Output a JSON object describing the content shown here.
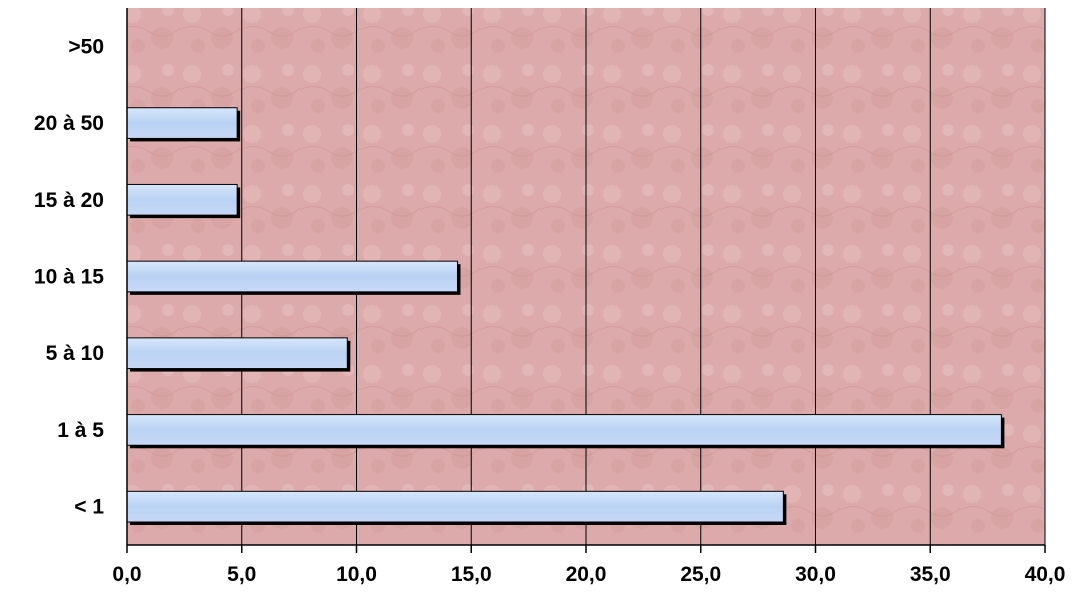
{
  "chart_data": {
    "type": "bar",
    "orientation": "horizontal",
    "categories": [
      "< 1",
      "1 à 5",
      "5 à 10",
      "10 à 15",
      "15 à 20",
      "20 à 50",
      ">50"
    ],
    "values": [
      28.6,
      38.1,
      9.6,
      14.4,
      4.8,
      4.8,
      0.0
    ],
    "xlim": [
      0,
      40
    ],
    "x_ticks": [
      "0,0",
      "5,0",
      "10,0",
      "15,0",
      "20,0",
      "25,0",
      "30,0",
      "35,0",
      "40,0"
    ],
    "grid": "vertical",
    "legend": "none",
    "title": "",
    "xlabel": "",
    "ylabel": "",
    "colors": {
      "plot_background": "#dcaaaa",
      "bar_fill": "#bcd4f4",
      "bar_shadow": "#000000",
      "gridline": "#000000"
    }
  }
}
